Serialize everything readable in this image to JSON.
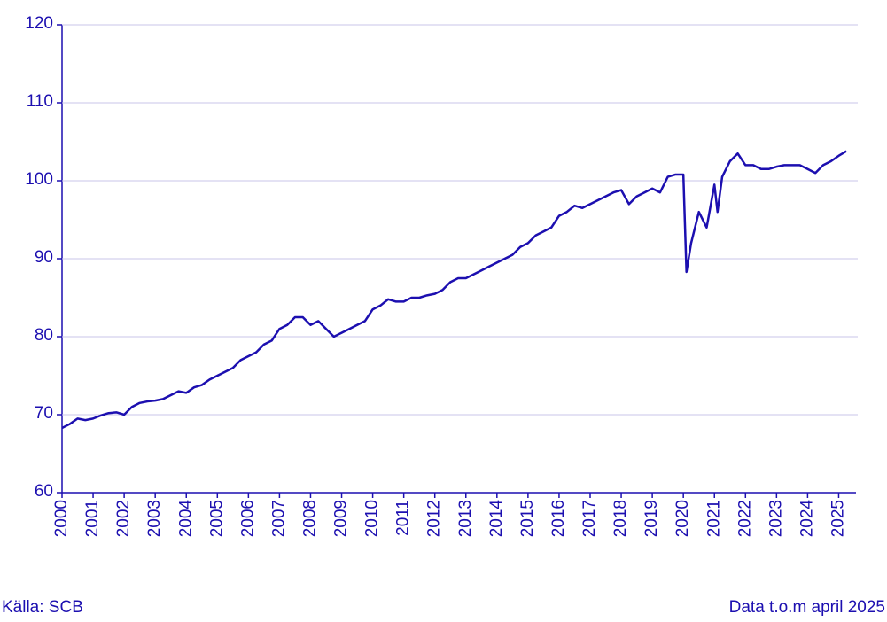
{
  "chart_data": {
    "type": "line",
    "x": [
      2000,
      2000.25,
      2000.5,
      2000.75,
      2001,
      2001.25,
      2001.5,
      2001.75,
      2002,
      2002.25,
      2002.5,
      2002.75,
      2003,
      2003.25,
      2003.5,
      2003.75,
      2004,
      2004.25,
      2004.5,
      2004.75,
      2005,
      2005.25,
      2005.5,
      2005.75,
      2006,
      2006.25,
      2006.5,
      2006.75,
      2007,
      2007.25,
      2007.5,
      2007.75,
      2008,
      2008.25,
      2008.5,
      2008.75,
      2009,
      2009.25,
      2009.5,
      2009.75,
      2010,
      2010.25,
      2010.5,
      2010.75,
      2011,
      2011.25,
      2011.5,
      2011.75,
      2012,
      2012.25,
      2012.5,
      2012.75,
      2013,
      2013.25,
      2013.5,
      2013.75,
      2014,
      2014.25,
      2014.5,
      2014.75,
      2015,
      2015.25,
      2015.5,
      2015.75,
      2016,
      2016.25,
      2016.5,
      2016.75,
      2017,
      2017.25,
      2017.5,
      2017.75,
      2018,
      2018.25,
      2018.5,
      2018.75,
      2019,
      2019.25,
      2019.5,
      2019.75,
      2020,
      2020.1,
      2020.25,
      2020.5,
      2020.75,
      2021,
      2021.1,
      2021.25,
      2021.5,
      2021.75,
      2022,
      2022.25,
      2022.5,
      2022.75,
      2023,
      2023.25,
      2023.5,
      2023.75,
      2024,
      2024.25,
      2024.5,
      2024.75,
      2025,
      2025.25
    ],
    "series": [
      {
        "color": "#1c0fb0",
        "values": [
          68.3,
          68.8,
          69.5,
          69.3,
          69.5,
          69.9,
          70.2,
          70.3,
          70.0,
          71.0,
          71.5,
          71.7,
          71.8,
          72.0,
          72.5,
          73.0,
          72.8,
          73.5,
          73.8,
          74.5,
          75.0,
          75.5,
          76.0,
          77.0,
          77.5,
          78.0,
          79.0,
          79.5,
          81.0,
          81.5,
          82.5,
          82.5,
          81.5,
          82.0,
          81.0,
          80.0,
          80.5,
          81.0,
          81.5,
          82.0,
          83.5,
          84.0,
          84.8,
          84.5,
          84.5,
          85.0,
          85.0,
          85.3,
          85.5,
          86.0,
          87.0,
          87.5,
          87.5,
          88.0,
          88.5,
          89.0,
          89.5,
          90.0,
          90.5,
          91.5,
          92.0,
          93.0,
          93.5,
          94.0,
          95.5,
          96.0,
          96.8,
          96.5,
          97.0,
          97.5,
          98.0,
          98.5,
          98.8,
          97.0,
          98.0,
          98.5,
          99.0,
          98.5,
          100.5,
          100.8,
          100.8,
          88.3,
          92.0,
          96.0,
          94.0,
          99.5,
          96.0,
          100.5,
          102.5,
          103.5,
          102.0,
          102.0,
          101.5,
          101.5,
          101.8,
          102.0,
          102.0,
          102.0,
          101.5,
          101.0,
          102.0,
          102.5,
          103.2,
          103.8
        ]
      }
    ],
    "xlim": [
      2000,
      2025.5
    ],
    "xticks": [
      2000,
      2001,
      2002,
      2003,
      2004,
      2005,
      2006,
      2007,
      2008,
      2009,
      2010,
      2011,
      2012,
      2013,
      2014,
      2015,
      2016,
      2017,
      2018,
      2019,
      2020,
      2021,
      2022,
      2023,
      2024,
      2025
    ],
    "ylim": [
      60,
      120
    ],
    "yticks": [
      60,
      70,
      80,
      90,
      100,
      110,
      120
    ],
    "grid": true,
    "source": "Källa: SCB",
    "note": "Data t.o.m april 2025"
  }
}
